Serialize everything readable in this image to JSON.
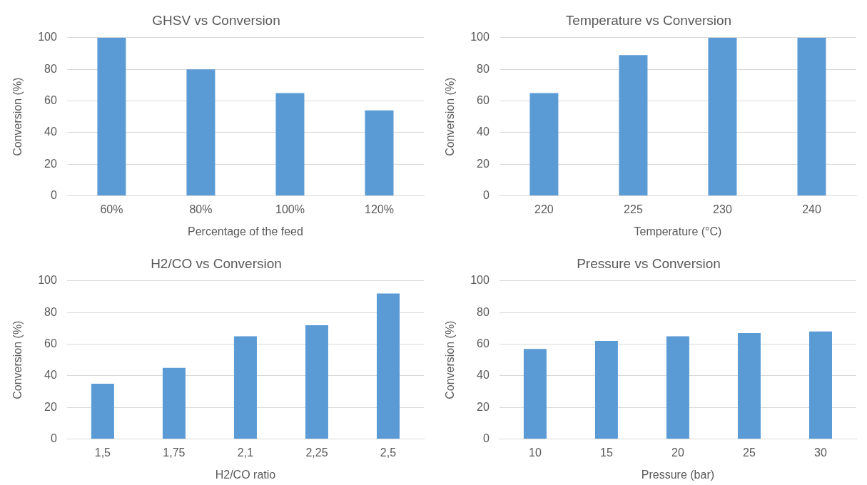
{
  "chart_data": [
    {
      "type": "bar",
      "title": "GHSV vs Conversion",
      "xlabel": "Percentage of the feed",
      "ylabel": "Conversion (%)",
      "categories": [
        "60%",
        "80%",
        "100%",
        "120%"
      ],
      "values": [
        100,
        80,
        65,
        54
      ],
      "color": "#5b9bd5",
      "ylim": [
        0,
        100
      ],
      "yticks": [
        0,
        20,
        40,
        60,
        80,
        100
      ],
      "grid": "y"
    },
    {
      "type": "bar",
      "title": "Temperature vs Conversion",
      "xlabel": "Temperature (°C)",
      "ylabel": "Conversion (%)",
      "categories": [
        "220",
        "225",
        "230",
        "240"
      ],
      "values": [
        65,
        89,
        100,
        100
      ],
      "color": "#5b9bd5",
      "ylim": [
        0,
        100
      ],
      "yticks": [
        0,
        20,
        40,
        60,
        80,
        100
      ],
      "grid": "y"
    },
    {
      "type": "bar",
      "title": "H2/CO vs Conversion",
      "xlabel": "H2/CO ratio",
      "ylabel": "Conversion (%)",
      "categories": [
        "1,5",
        "1,75",
        "2,1",
        "2,25",
        "2,5"
      ],
      "values": [
        35,
        45,
        65,
        72,
        92
      ],
      "color": "#5b9bd5",
      "ylim": [
        0,
        100
      ],
      "yticks": [
        0,
        20,
        40,
        60,
        80,
        100
      ],
      "grid": "y"
    },
    {
      "type": "bar",
      "title": "Pressure vs Conversion",
      "xlabel": "Pressure (bar)",
      "ylabel": "Conversion (%)",
      "categories": [
        "10",
        "15",
        "20",
        "25",
        "30"
      ],
      "values": [
        57,
        62,
        65,
        67,
        68
      ],
      "color": "#5b9bd5",
      "ylim": [
        0,
        100
      ],
      "yticks": [
        0,
        20,
        40,
        60,
        80,
        100
      ],
      "grid": "y"
    }
  ]
}
